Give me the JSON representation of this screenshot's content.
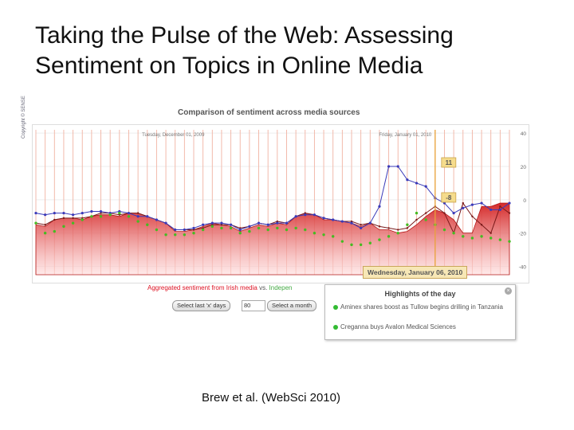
{
  "slide": {
    "title": "Taking the Pulse of the Web: Assessing Sentiment on Topics in Online Media",
    "citation": "Brew et al. (WebSci 2010)"
  },
  "widget": {
    "credit": "Copyright © SENSE",
    "aggregated_label": "Aggregated sentiment from Irish media",
    "vs_label": "vs.",
    "independent_label": "Indepen",
    "select_days_label": "Select last 'x' days",
    "days_value": "80",
    "select_month_label": "Select a month",
    "tooltip_date": "Wednesday, January 06, 2010",
    "highlights": {
      "title": "Highlights of the day",
      "close": "×",
      "items": [
        "Aminex shares boost as Tullow begins drilling in Tanzania",
        "Creganna buys Avalon Medical Sciences"
      ]
    }
  },
  "colors": {
    "area": "#d21e1e",
    "red_line": "#7a1a1a",
    "blue_line": "#3a3ab8",
    "green_dots": "#44bb22"
  },
  "chart_data": {
    "type": "line",
    "title": "Comparison of sentiment across media sources",
    "date_labels": [
      "Tuesday, December 01, 2009",
      "Friday, January 01, 2010"
    ],
    "y_ticks": [
      40,
      20,
      0,
      -20,
      -40
    ],
    "ylim": [
      -45,
      42
    ],
    "x": [
      1,
      2,
      3,
      4,
      5,
      6,
      7,
      8,
      9,
      10,
      11,
      12,
      13,
      14,
      15,
      16,
      17,
      18,
      19,
      20,
      21,
      22,
      23,
      24,
      25,
      26,
      27,
      28,
      29,
      30,
      31,
      32,
      33,
      34,
      35,
      36,
      37,
      38,
      39,
      40,
      41,
      42,
      43,
      44,
      45,
      46,
      47,
      48,
      49,
      50,
      51,
      52
    ],
    "series": [
      {
        "name": "Irish media",
        "values": [
          -15,
          -16,
          -12,
          -11,
          -11,
          -12,
          -10,
          -9,
          -9,
          -10,
          -8,
          -8,
          -10,
          -12,
          -14,
          -19,
          -19,
          -18,
          -16,
          -14,
          -15,
          -16,
          -19,
          -17,
          -15,
          -16,
          -14,
          -15,
          -10,
          -8,
          -9,
          -12,
          -12,
          -13,
          -14,
          -16,
          -14,
          -18,
          -18,
          -20,
          -19,
          -15,
          -10,
          -6,
          -8,
          -12,
          -20,
          -20,
          -4,
          -4,
          -2,
          -2
        ]
      },
      {
        "name": "",
        "values": [
          -14,
          -15,
          -12,
          -11,
          -11,
          -11,
          -10,
          -8,
          -8,
          -9,
          -8,
          -8,
          -10,
          -12,
          -14,
          -18,
          -18,
          -18,
          -17,
          -15,
          -15,
          -15,
          -17,
          -16,
          -14,
          -15,
          -13,
          -14,
          -10,
          -8,
          -9,
          -11,
          -12,
          -13,
          -13,
          -15,
          -14,
          -16,
          -17,
          -18,
          -17,
          -12,
          -8,
          -4,
          -8,
          -20,
          -2,
          -10,
          -15,
          -20,
          -4,
          -8
        ]
      },
      {
        "name": "",
        "values": [
          -8,
          -9,
          -8,
          -8,
          -9,
          -8,
          -7,
          -7,
          -8,
          -7,
          -8,
          -10,
          -10,
          -12,
          -14,
          -18,
          -18,
          -17,
          -15,
          -14,
          -14,
          -15,
          -18,
          -16,
          -14,
          -15,
          -14,
          -14,
          -10,
          -9,
          -9,
          -11,
          -12,
          -13,
          -14,
          -17,
          -14,
          -4,
          20,
          20,
          12,
          10,
          8,
          1,
          -2,
          -8,
          -5,
          -3,
          -2,
          -6,
          -6,
          -2
        ]
      },
      {
        "name": "Independent",
        "values": [
          -14,
          -20,
          -19,
          -16,
          -14,
          -12,
          -10,
          -10,
          -9,
          -8,
          -10,
          -13,
          -15,
          -18,
          -21,
          -21,
          -21,
          -20,
          -18,
          -16,
          -17,
          -17,
          -20,
          -19,
          -17,
          -18,
          -17,
          -18,
          -17,
          -18,
          -20,
          -21,
          -22,
          -25,
          -27,
          -27,
          -26,
          -24,
          -22,
          -20,
          -15,
          -8,
          -12,
          -15,
          -18,
          -20,
          -22,
          -23,
          -22,
          -23,
          -24,
          -25
        ]
      }
    ],
    "callouts": [
      "11",
      "-8"
    ],
    "grid": true
  }
}
